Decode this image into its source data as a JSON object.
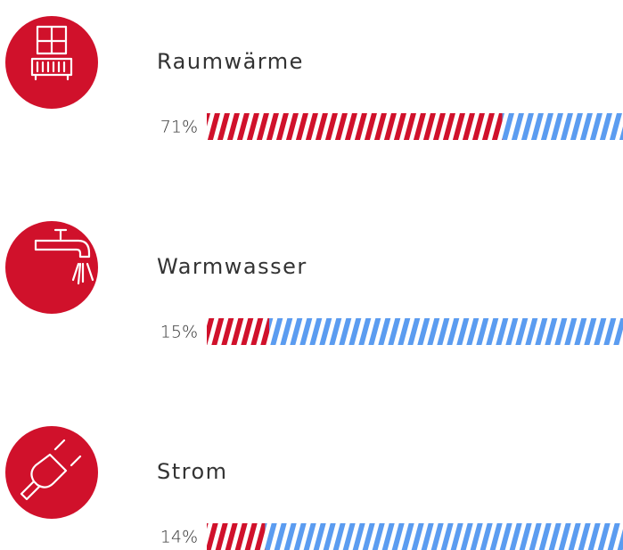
{
  "chart_data": {
    "type": "bar",
    "categories": [
      "Raumwärme",
      "Warmwasser",
      "Strom"
    ],
    "values": [
      71,
      15,
      14
    ],
    "value_labels": [
      "71%",
      "15%",
      "14%"
    ],
    "color": "#d0112b",
    "rest_color": "#5b9cf0",
    "xlim": [
      0,
      100
    ]
  }
}
